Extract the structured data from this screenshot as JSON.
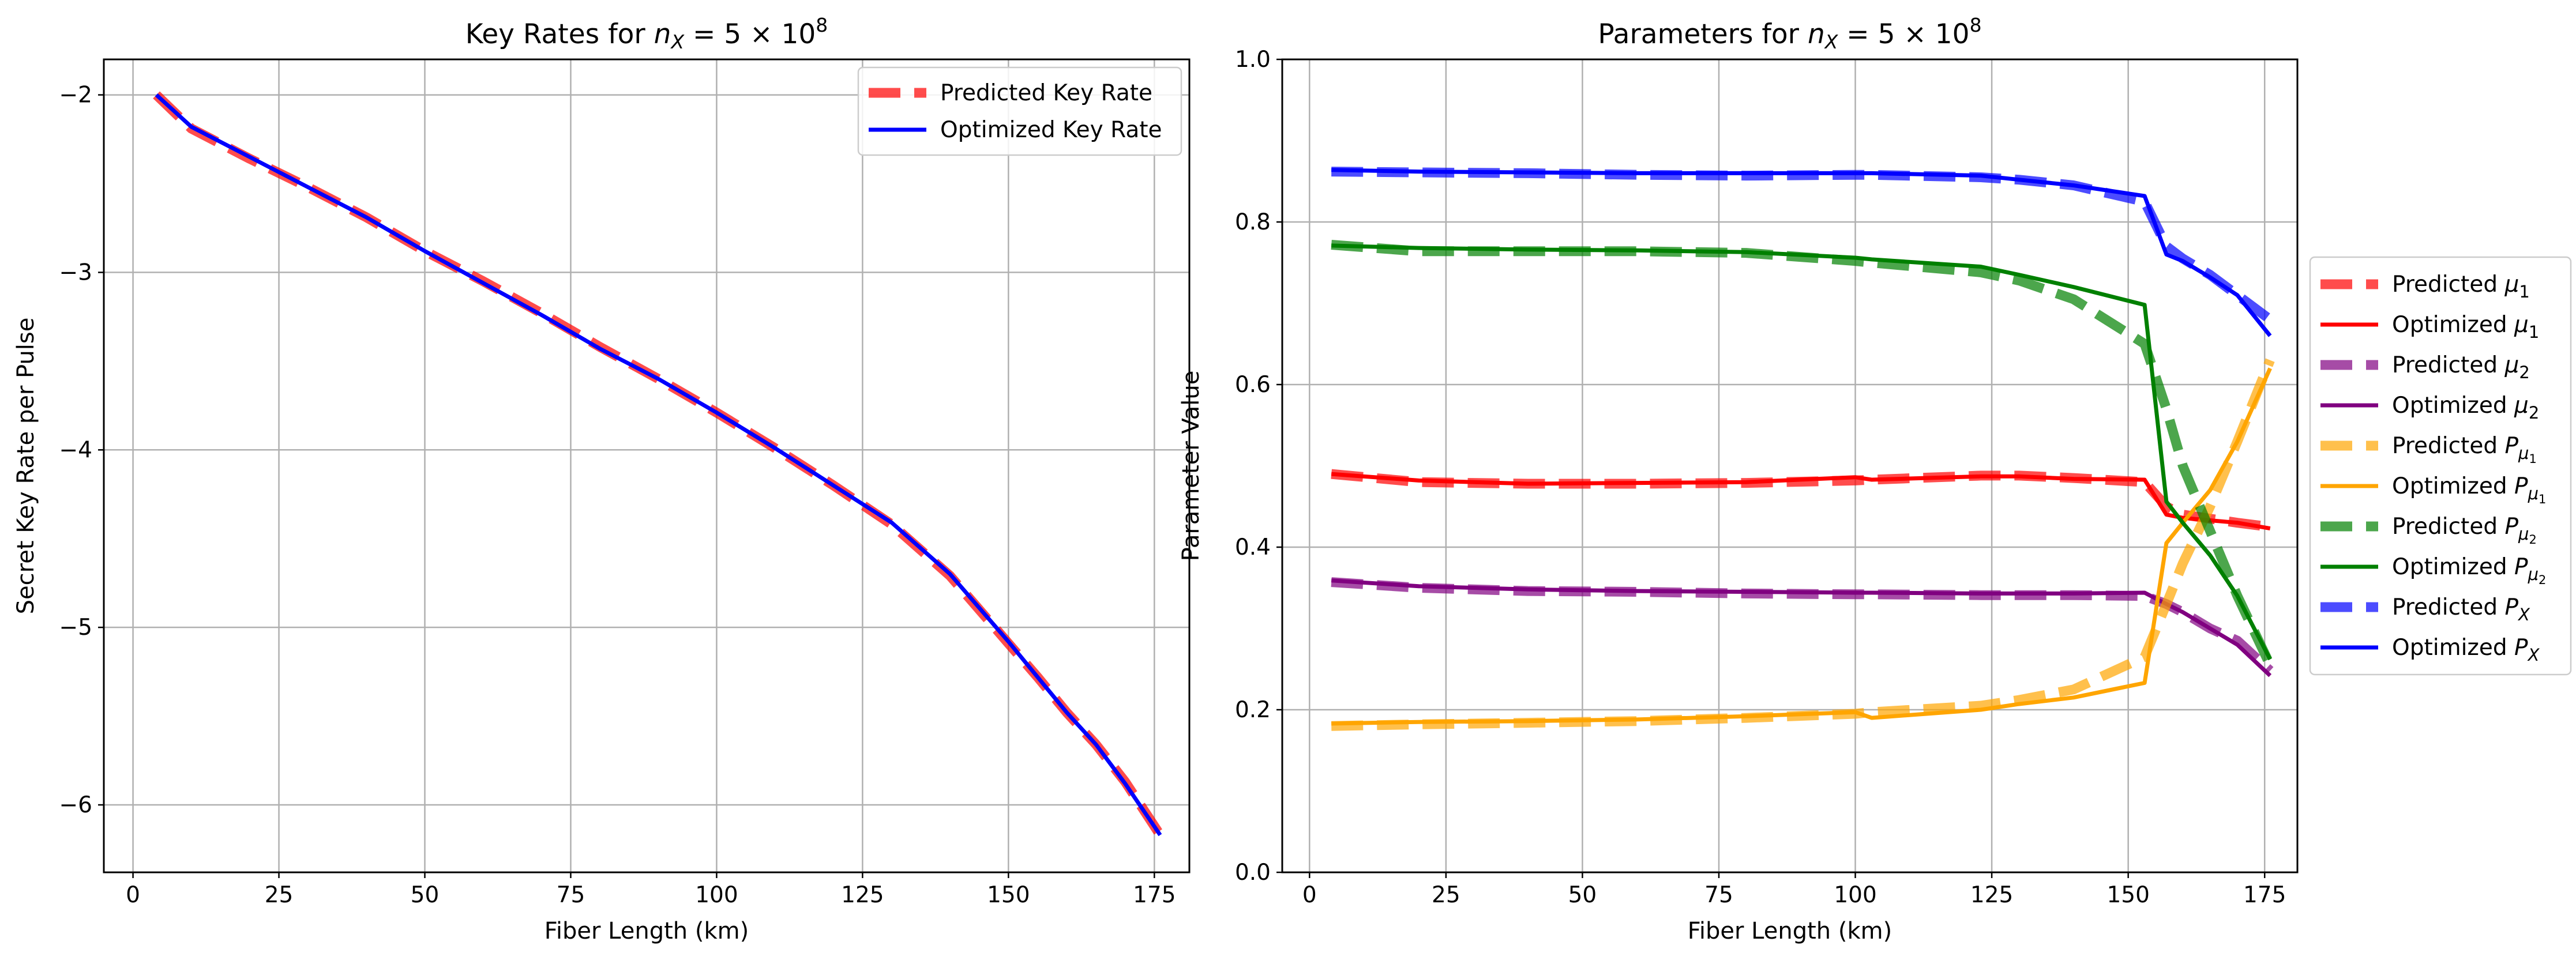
{
  "chart_data": [
    {
      "type": "line",
      "title": "Key Rates for $n_X = 5 \\times 10^8$",
      "title_text": "Key Rates for ",
      "title_math": {
        "var": "n",
        "sub": "X",
        "rest": " = 5 × 10",
        "exp": "8"
      },
      "xlabel": "Fiber Length (km)",
      "ylabel": "Secret Key Rate per Pulse",
      "xlim": [
        -5,
        181
      ],
      "ylim": [
        -6.38,
        -1.8
      ],
      "xticks": [
        0,
        25,
        50,
        75,
        100,
        125,
        150,
        175
      ],
      "yticks": [
        -6,
        -5,
        -4,
        -3,
        -2
      ],
      "ytick_labels": [
        "−6",
        "−5",
        "−4",
        "−3",
        "−2"
      ],
      "grid": true,
      "legend_position": "upper right",
      "x": [
        4,
        10,
        20,
        30,
        40,
        50,
        60,
        70,
        80,
        90,
        100,
        110,
        120,
        130,
        140,
        150,
        155,
        160,
        165,
        170,
        176
      ],
      "series": [
        {
          "name": "Predicted Key Rate",
          "style": "dashed",
          "color": "#ff0000",
          "alpha": 0.7,
          "values": [
            -2.0,
            -2.19,
            -2.36,
            -2.52,
            -2.69,
            -2.88,
            -3.05,
            -3.23,
            -3.42,
            -3.6,
            -3.79,
            -3.99,
            -4.2,
            -4.42,
            -4.71,
            -5.09,
            -5.28,
            -5.48,
            -5.66,
            -5.87,
            -6.17
          ]
        },
        {
          "name": "Optimized Key Rate",
          "style": "solid",
          "color": "#0000ff",
          "alpha": 1,
          "values": [
            -2.0,
            -2.18,
            -2.35,
            -2.52,
            -2.69,
            -2.88,
            -3.06,
            -3.24,
            -3.43,
            -3.6,
            -3.79,
            -3.99,
            -4.2,
            -4.41,
            -4.7,
            -5.08,
            -5.28,
            -5.48,
            -5.66,
            -5.88,
            -6.17
          ]
        }
      ]
    },
    {
      "type": "line",
      "title": "Parameters for $n_X = 5 \\times 10^8$",
      "title_text": "Parameters for ",
      "title_math": {
        "var": "n",
        "sub": "X",
        "rest": " = 5 × 10",
        "exp": "8"
      },
      "xlabel": "Fiber Length (km)",
      "ylabel": "Parameter Value",
      "xlim": [
        -5,
        181
      ],
      "ylim": [
        0,
        1
      ],
      "xticks": [
        0,
        25,
        50,
        75,
        100,
        125,
        150,
        175
      ],
      "yticks": [
        0.0,
        0.2,
        0.4,
        0.6,
        0.8,
        1.0
      ],
      "ytick_labels": [
        "0.0",
        "0.2",
        "0.4",
        "0.6",
        "0.8",
        "1.0"
      ],
      "grid": true,
      "legend_position": "center right outside",
      "x": [
        4,
        20,
        40,
        60,
        80,
        100,
        103,
        123,
        130,
        140,
        153,
        157,
        160,
        165,
        170,
        176
      ],
      "series": [
        {
          "name": "Predicted μ1",
          "label_main": "Predicted ",
          "label_sym": "μ",
          "label_sub": "1",
          "label_sub2": "",
          "style": "dashed",
          "color": "#ff0000",
          "alpha": 0.7,
          "values": [
            0.49,
            0.48,
            0.478,
            0.478,
            0.479,
            0.482,
            0.483,
            0.488,
            0.488,
            0.485,
            0.48,
            0.45,
            0.44,
            0.435,
            0.43,
            0.425
          ]
        },
        {
          "name": "Optimized μ1",
          "label_main": "Optimized ",
          "label_sym": "μ",
          "label_sub": "1",
          "label_sub2": "",
          "style": "solid",
          "color": "#ff0000",
          "alpha": 1,
          "values": [
            0.49,
            0.482,
            0.478,
            0.479,
            0.48,
            0.486,
            0.483,
            0.487,
            0.487,
            0.484,
            0.483,
            0.44,
            0.436,
            0.433,
            0.43,
            0.423
          ]
        },
        {
          "name": "Predicted μ2",
          "label_main": "Predicted ",
          "label_sym": "μ",
          "label_sub": "2",
          "label_sub2": "",
          "style": "dashed",
          "color": "#800080",
          "alpha": 0.7,
          "values": [
            0.357,
            0.35,
            0.346,
            0.345,
            0.343,
            0.342,
            0.342,
            0.341,
            0.341,
            0.341,
            0.34,
            0.33,
            0.32,
            0.3,
            0.285,
            0.248
          ]
        },
        {
          "name": "Optimized μ2",
          "label_main": "Optimized ",
          "label_sym": "μ",
          "label_sub": "2",
          "label_sub2": "",
          "style": "solid",
          "color": "#800080",
          "alpha": 1,
          "values": [
            0.359,
            0.352,
            0.348,
            0.346,
            0.345,
            0.344,
            0.344,
            0.343,
            0.343,
            0.343,
            0.344,
            0.33,
            0.32,
            0.3,
            0.28,
            0.242
          ]
        },
        {
          "name": "Predicted Pμ1",
          "label_main": "Predicted ",
          "label_sym": "P",
          "label_sub": "μ",
          "label_sub2": "1",
          "style": "dashed",
          "color": "#ffa500",
          "alpha": 0.7,
          "values": [
            0.18,
            0.182,
            0.184,
            0.186,
            0.19,
            0.195,
            0.197,
            0.205,
            0.212,
            0.225,
            0.265,
            0.33,
            0.38,
            0.45,
            0.53,
            0.63
          ]
        },
        {
          "name": "Optimized Pμ1",
          "label_main": "Optimized ",
          "label_sym": "P",
          "label_sub": "μ",
          "label_sub2": "1",
          "style": "solid",
          "color": "#ffa500",
          "alpha": 1,
          "values": [
            0.183,
            0.185,
            0.186,
            0.188,
            0.192,
            0.197,
            0.19,
            0.2,
            0.207,
            0.215,
            0.233,
            0.405,
            0.43,
            0.47,
            0.53,
            0.62
          ]
        },
        {
          "name": "Predicted Pμ2",
          "label_main": "Predicted ",
          "label_sym": "P",
          "label_sub": "μ",
          "label_sub2": "2",
          "style": "dashed",
          "color": "#008000",
          "alpha": 0.7,
          "values": [
            0.772,
            0.764,
            0.764,
            0.764,
            0.762,
            0.752,
            0.75,
            0.738,
            0.728,
            0.705,
            0.65,
            0.57,
            0.5,
            0.42,
            0.34,
            0.255
          ]
        },
        {
          "name": "Optimized Pμ2",
          "label_main": "Optimized ",
          "label_sym": "P",
          "label_sub": "μ",
          "label_sub2": "2",
          "style": "solid",
          "color": "#008000",
          "alpha": 1,
          "values": [
            0.771,
            0.768,
            0.766,
            0.765,
            0.763,
            0.756,
            0.754,
            0.745,
            0.735,
            0.72,
            0.698,
            0.456,
            0.43,
            0.39,
            0.34,
            0.262
          ]
        },
        {
          "name": "Predicted PX",
          "label_main": "Predicted ",
          "label_sym": "P",
          "label_sub": "X",
          "label_sub2": "",
          "style": "dashed",
          "color": "#0000ff",
          "alpha": 0.7,
          "values": [
            0.862,
            0.861,
            0.86,
            0.858,
            0.857,
            0.858,
            0.858,
            0.855,
            0.852,
            0.845,
            0.825,
            0.77,
            0.755,
            0.735,
            0.71,
            0.68
          ]
        },
        {
          "name": "Optimized PX",
          "label_main": "Optimized ",
          "label_sym": "P",
          "label_sub": "X",
          "label_sub2": "",
          "style": "solid",
          "color": "#0000ff",
          "alpha": 1,
          "values": [
            0.864,
            0.862,
            0.861,
            0.86,
            0.86,
            0.86,
            0.86,
            0.857,
            0.852,
            0.845,
            0.832,
            0.76,
            0.752,
            0.732,
            0.71,
            0.66
          ]
        }
      ]
    }
  ]
}
